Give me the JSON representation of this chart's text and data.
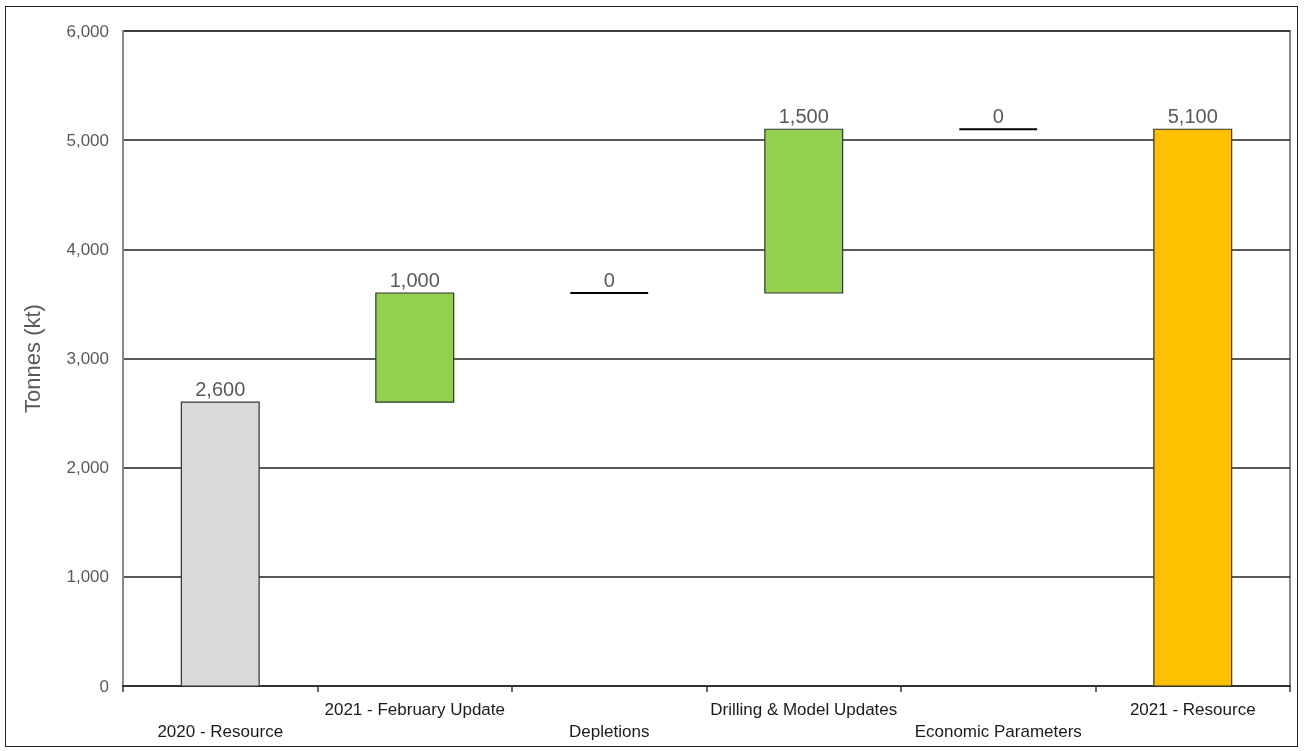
{
  "chart_data": {
    "type": "bar",
    "categories": [
      "2020 - Resource",
      "2021 - February Update",
      "Depletions",
      "Drilling & Model Updates",
      "Economic Parameters",
      "2021 - Resource"
    ],
    "values": [
      2600,
      1000,
      0,
      1500,
      0,
      5100
    ],
    "base": [
      0,
      2600,
      3600,
      3600,
      5100,
      0
    ],
    "colors": [
      "#d9d9d9",
      "#92d050",
      "#000000",
      "#92d050",
      "#000000",
      "#ffc000"
    ],
    "value_labels": [
      "2,600",
      "1,000",
      "0",
      "1,500",
      "0",
      "5,100"
    ],
    "ylabel": "Tonnes (kt)",
    "ylim": [
      0,
      6000
    ],
    "yticks": [
      {
        "value": 0,
        "label": "0"
      },
      {
        "value": 1000,
        "label": "1,000"
      },
      {
        "value": 2000,
        "label": "2,000"
      },
      {
        "value": 3000,
        "label": "3,000"
      },
      {
        "value": 4000,
        "label": "4,000"
      },
      {
        "value": 5000,
        "label": "5,000"
      },
      {
        "value": 6000,
        "label": "6,000"
      }
    ],
    "grid": "y"
  }
}
